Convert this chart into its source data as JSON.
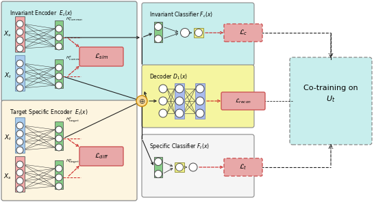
{
  "bg": "#ffffff",
  "cyan_bg": "#c8eeed",
  "cream_bg": "#fdf5e0",
  "yellow_bg": "#f5f5a0",
  "white_bg": "#f5f5f5",
  "cotrain_bg": "#c8eeed",
  "pink_in": "#f4aaaa",
  "blue_in": "#aaccee",
  "green_h": "#88cc88",
  "blue_dec": "#aabbee",
  "yellow_cls": "#eeee88",
  "loss_fill": "#e8a8a8",
  "loss_edge": "#cc5555",
  "red": "#cc2222",
  "blk": "#222222",
  "gray": "#888888"
}
